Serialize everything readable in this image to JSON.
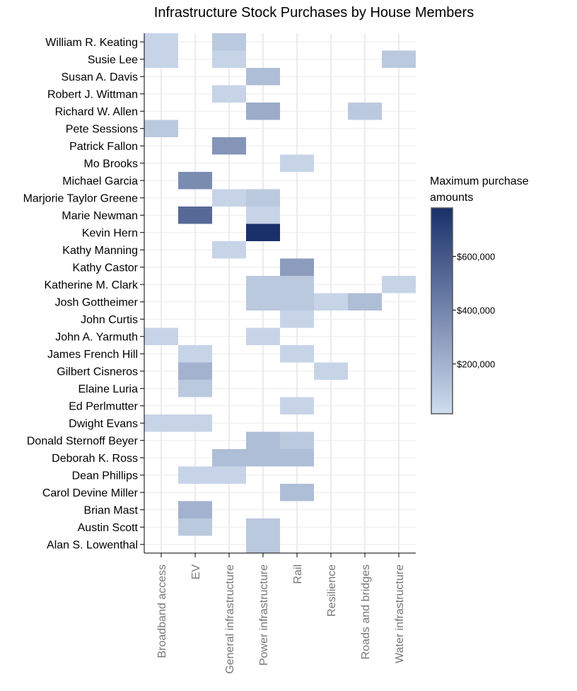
{
  "chart_data": {
    "type": "heatmap",
    "title": "Infrastructure Stock Purchases by House Members",
    "xlabel": "",
    "ylabel": "",
    "x_categories": [
      "Broadband access",
      "EV",
      "General infrastructure",
      "Power infrastructure",
      "Rail",
      "Resilience",
      "Roads and bridges",
      "Water infrastructure"
    ],
    "y_categories": [
      "William R. Keating",
      "Susie Lee",
      "Susan A. Davis",
      "Robert J. Wittman",
      "Richard W. Allen",
      "Pete Sessions",
      "Patrick Fallon",
      "Mo Brooks",
      "Michael Garcia",
      "Marjorie Taylor Greene",
      "Marie Newman",
      "Kevin Hern",
      "Kathy Manning",
      "Kathy Castor",
      "Katherine M. Clark",
      "Josh Gottheimer",
      "John Curtis",
      "John A. Yarmuth",
      "James French Hill",
      "Gilbert Cisneros",
      "Elaine Luria",
      "Ed Perlmutter",
      "Dwight Evans",
      "Donald Sternoff Beyer",
      "Deborah K. Ross",
      "Dean Phillips",
      "Carol Devine Miller",
      "Brian Mast",
      "Austin Scott",
      "Alan S. Lowenthal"
    ],
    "cells": [
      {
        "y": "William R. Keating",
        "x": "Broadband access",
        "value": 50000
      },
      {
        "y": "William R. Keating",
        "x": "General infrastructure",
        "value": 100000
      },
      {
        "y": "Susie Lee",
        "x": "Broadband access",
        "value": 50000
      },
      {
        "y": "Susie Lee",
        "x": "General infrastructure",
        "value": 50000
      },
      {
        "y": "Susie Lee",
        "x": "Water infrastructure",
        "value": 100000
      },
      {
        "y": "Susan A. Davis",
        "x": "Power infrastructure",
        "value": 150000
      },
      {
        "y": "Robert J. Wittman",
        "x": "General infrastructure",
        "value": 50000
      },
      {
        "y": "Richard W. Allen",
        "x": "Power infrastructure",
        "value": 230000
      },
      {
        "y": "Richard W. Allen",
        "x": "Roads and bridges",
        "value": 100000
      },
      {
        "y": "Pete Sessions",
        "x": "Broadband access",
        "value": 100000
      },
      {
        "y": "Patrick Fallon",
        "x": "General infrastructure",
        "value": 330000
      },
      {
        "y": "Mo Brooks",
        "x": "Rail",
        "value": 50000
      },
      {
        "y": "Michael Garcia",
        "x": "EV",
        "value": 370000
      },
      {
        "y": "Marjorie Taylor Greene",
        "x": "General infrastructure",
        "value": 50000
      },
      {
        "y": "Marjorie Taylor Greene",
        "x": "Power infrastructure",
        "value": 100000
      },
      {
        "y": "Marie Newman",
        "x": "EV",
        "value": 520000
      },
      {
        "y": "Marie Newman",
        "x": "Power infrastructure",
        "value": 50000
      },
      {
        "y": "Kevin Hern",
        "x": "Power infrastructure",
        "value": 780000
      },
      {
        "y": "Kathy Manning",
        "x": "General infrastructure",
        "value": 50000
      },
      {
        "y": "Kathy Castor",
        "x": "Rail",
        "value": 300000
      },
      {
        "y": "Katherine M. Clark",
        "x": "Power infrastructure",
        "value": 100000
      },
      {
        "y": "Katherine M. Clark",
        "x": "Rail",
        "value": 100000
      },
      {
        "y": "Katherine M. Clark",
        "x": "Water infrastructure",
        "value": 50000
      },
      {
        "y": "Josh Gottheimer",
        "x": "Power infrastructure",
        "value": 100000
      },
      {
        "y": "Josh Gottheimer",
        "x": "Rail",
        "value": 100000
      },
      {
        "y": "Josh Gottheimer",
        "x": "Resilience",
        "value": 50000
      },
      {
        "y": "Josh Gottheimer",
        "x": "Roads and bridges",
        "value": 150000
      },
      {
        "y": "John Curtis",
        "x": "Rail",
        "value": 50000
      },
      {
        "y": "John A. Yarmuth",
        "x": "Broadband access",
        "value": 50000
      },
      {
        "y": "John A. Yarmuth",
        "x": "Power infrastructure",
        "value": 50000
      },
      {
        "y": "James French Hill",
        "x": "EV",
        "value": 50000
      },
      {
        "y": "James French Hill",
        "x": "Rail",
        "value": 50000
      },
      {
        "y": "Gilbert Cisneros",
        "x": "EV",
        "value": 200000
      },
      {
        "y": "Gilbert Cisneros",
        "x": "Resilience",
        "value": 50000
      },
      {
        "y": "Elaine Luria",
        "x": "EV",
        "value": 100000
      },
      {
        "y": "Ed Perlmutter",
        "x": "Rail",
        "value": 50000
      },
      {
        "y": "Dwight Evans",
        "x": "Broadband access",
        "value": 50000
      },
      {
        "y": "Dwight Evans",
        "x": "EV",
        "value": 50000
      },
      {
        "y": "Donald Sternoff Beyer",
        "x": "Power infrastructure",
        "value": 150000
      },
      {
        "y": "Donald Sternoff Beyer",
        "x": "Rail",
        "value": 100000
      },
      {
        "y": "Deborah K. Ross",
        "x": "General infrastructure",
        "value": 150000
      },
      {
        "y": "Deborah K. Ross",
        "x": "Power infrastructure",
        "value": 150000
      },
      {
        "y": "Deborah K. Ross",
        "x": "Rail",
        "value": 150000
      },
      {
        "y": "Dean Phillips",
        "x": "EV",
        "value": 50000
      },
      {
        "y": "Dean Phillips",
        "x": "General infrastructure",
        "value": 50000
      },
      {
        "y": "Carol Devine Miller",
        "x": "Rail",
        "value": 150000
      },
      {
        "y": "Brian Mast",
        "x": "EV",
        "value": 200000
      },
      {
        "y": "Austin Scott",
        "x": "EV",
        "value": 100000
      },
      {
        "y": "Austin Scott",
        "x": "Power infrastructure",
        "value": 100000
      },
      {
        "y": "Alan S. Lowenthal",
        "x": "Power infrastructure",
        "value": 100000
      }
    ],
    "colorbar": {
      "title_line1": "Maximum purchase",
      "title_line2": "amounts",
      "min": 15000,
      "max": 780000,
      "ticks": [
        {
          "value": 200000,
          "label": "$200,000"
        },
        {
          "value": 400000,
          "label": "$400,000"
        },
        {
          "value": 600000,
          "label": "$600,000"
        }
      ],
      "color_low": "#cfdcee",
      "color_high": "#19306a"
    },
    "grid": true
  }
}
